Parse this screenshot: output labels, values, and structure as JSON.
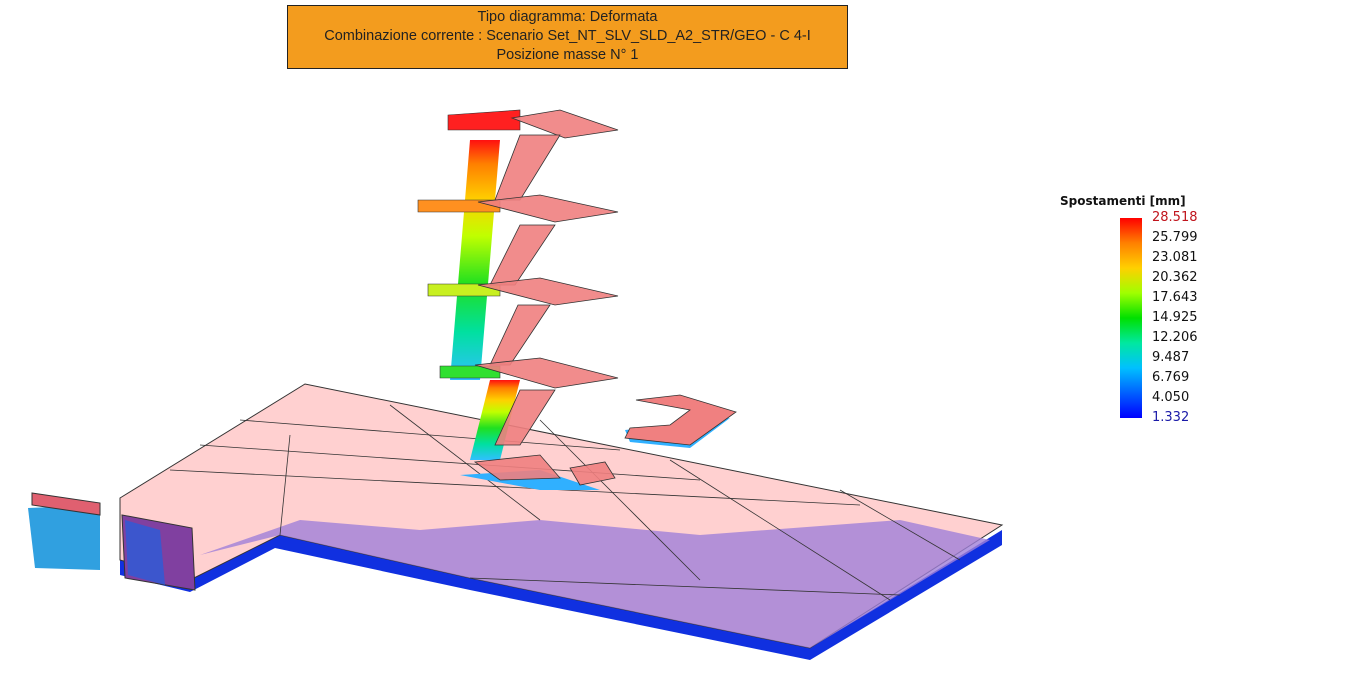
{
  "header": {
    "line1": "Tipo diagramma: Deformata",
    "line2": "Combinazione corrente : Scenario Set_NT_SLV_SLD_A2_STR/GEO - C 4-I",
    "line3": "Posizione masse N° 1",
    "background_color": "#f39c1e"
  },
  "legend": {
    "title": "Spostamenti [mm]",
    "values": [
      "28.518",
      "25.799",
      "23.081",
      "20.362",
      "17.643",
      "14.925",
      "12.206",
      "9.487",
      "6.769",
      "4.050",
      "1.332"
    ],
    "max_color": "#c0141c",
    "min_color": "#1a1aa8",
    "gradient": [
      "#ff0000",
      "#ff8000",
      "#ffd000",
      "#a0ff00",
      "#00e000",
      "#00e8a0",
      "#00c0ff",
      "#0060ff",
      "#0000ff"
    ]
  }
}
